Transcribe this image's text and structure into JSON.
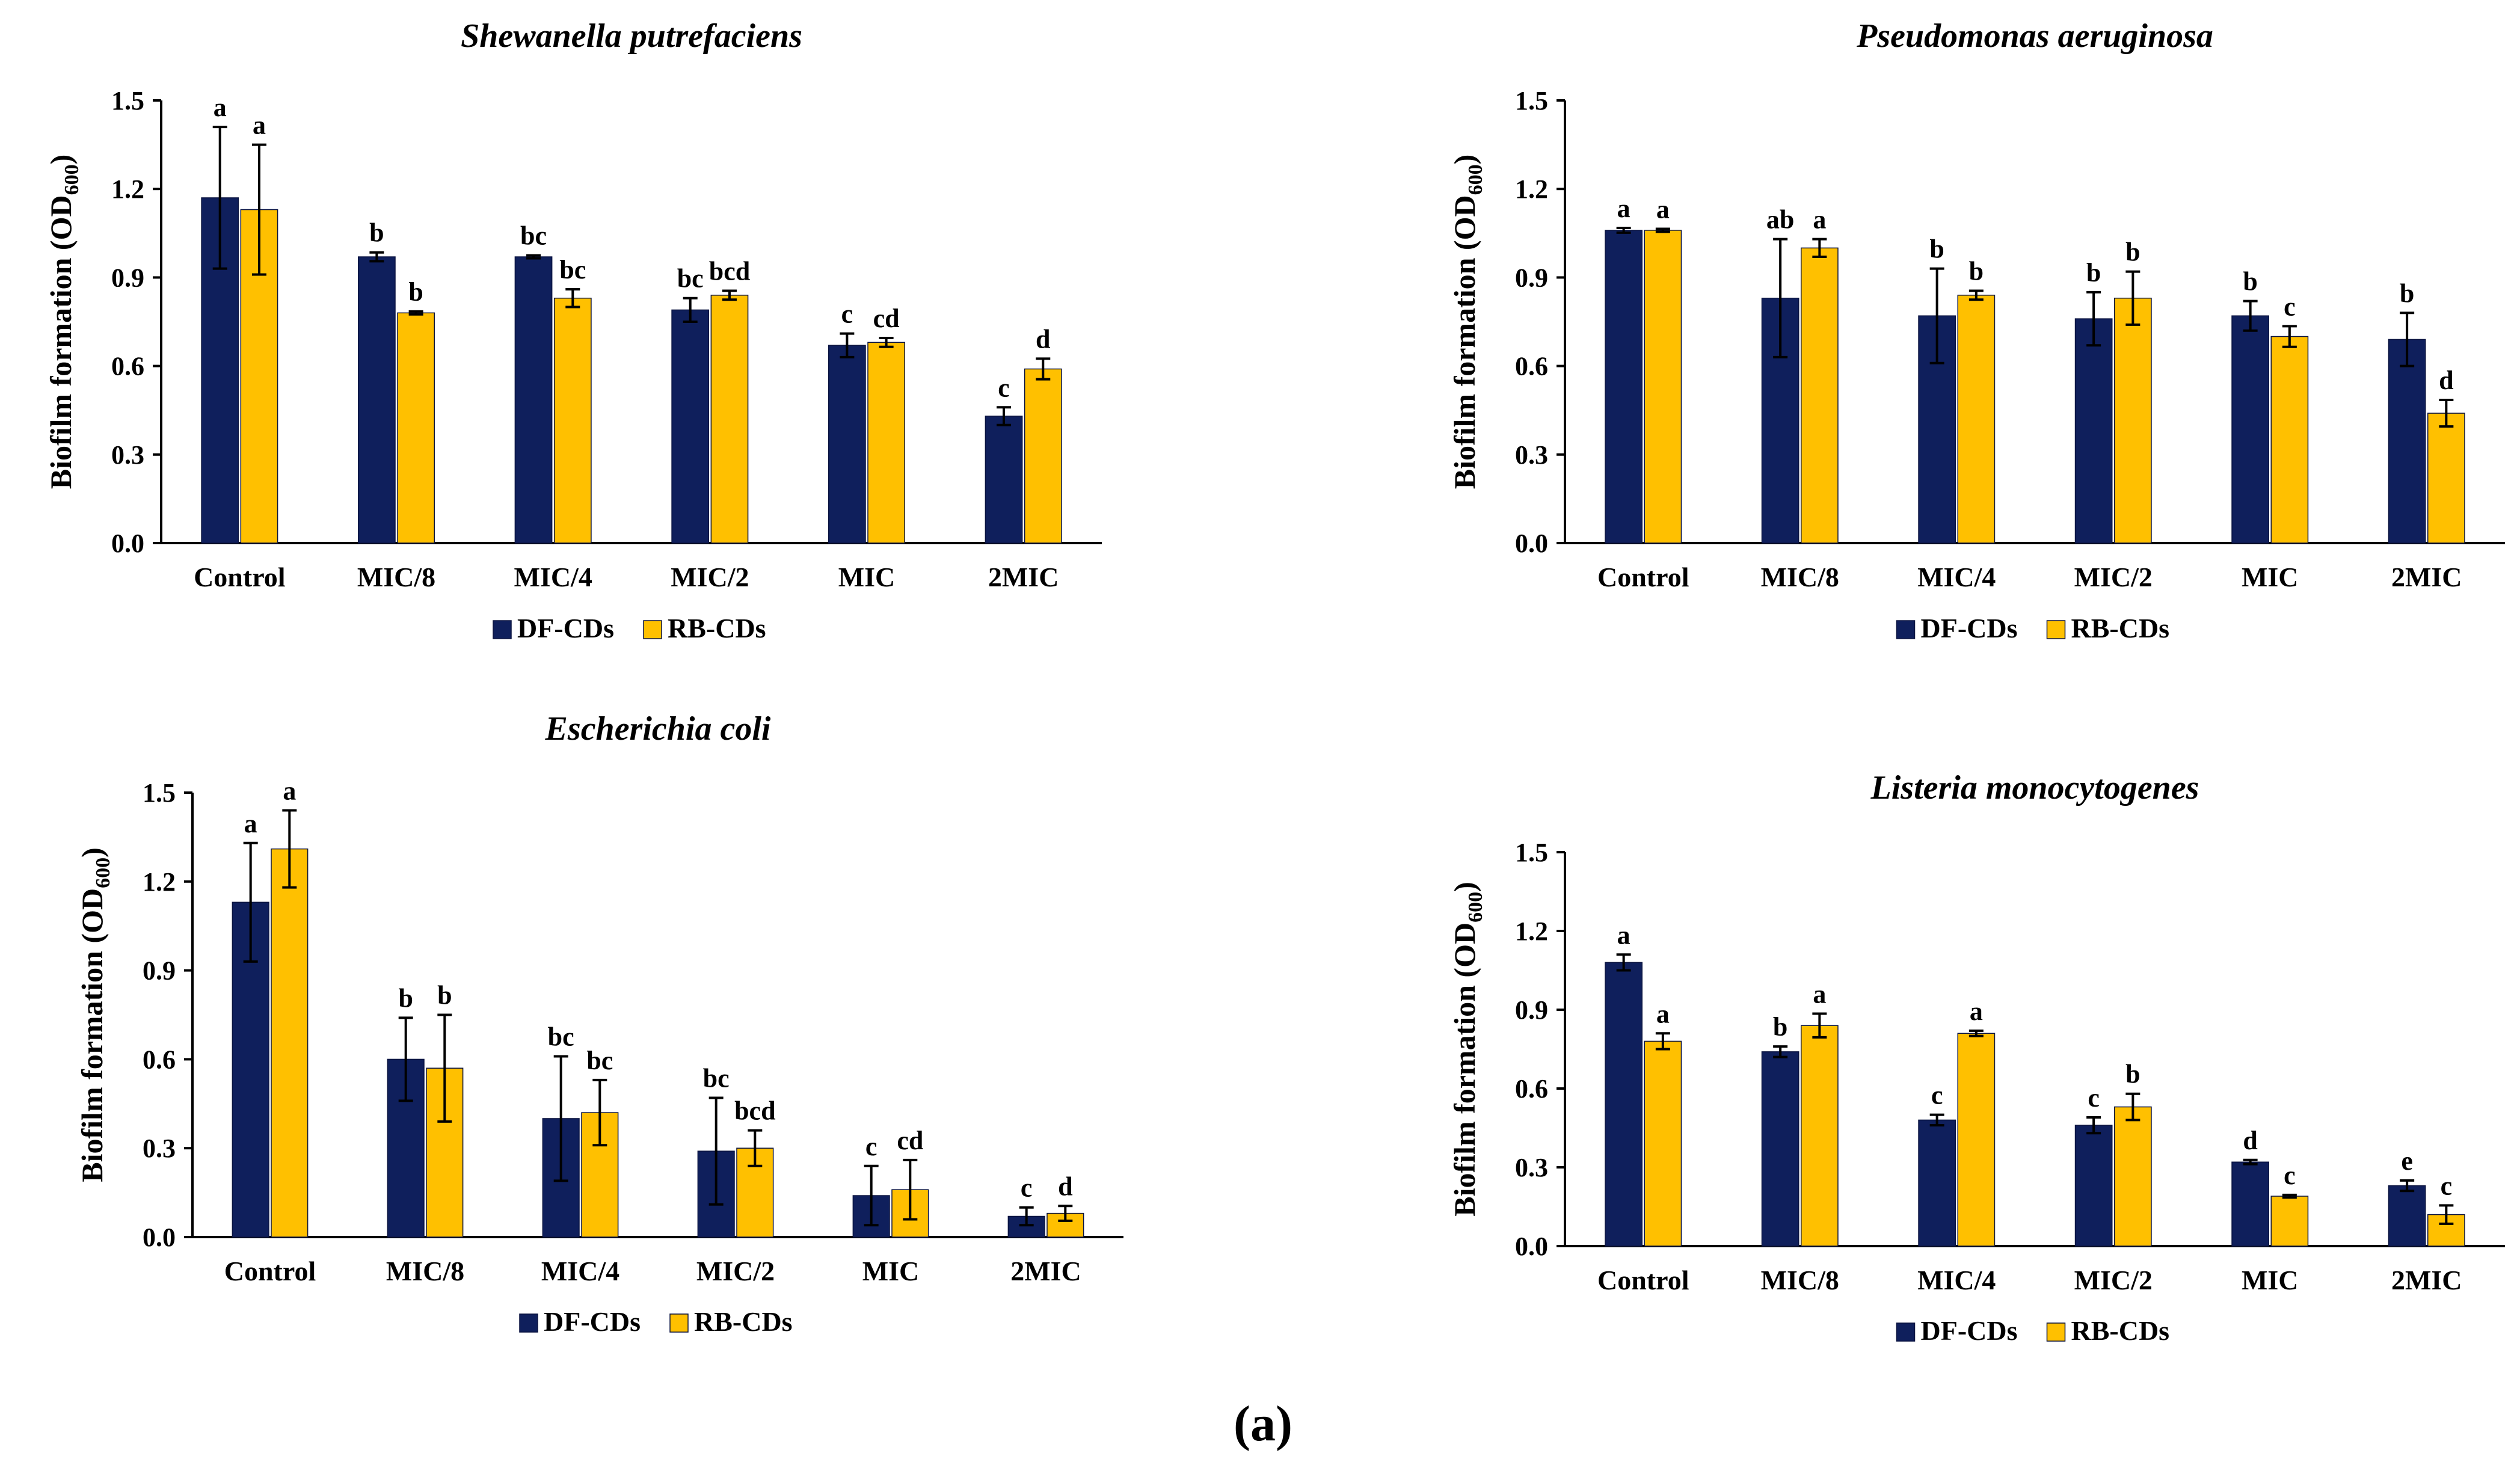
{
  "figure_caption": "(a)",
  "colors": {
    "DF-CDs": "#0f1f5c",
    "RB-CDs": "#ffc000",
    "axis": "#000000"
  },
  "chart_data": [
    {
      "type": "bar",
      "title": "Shewanella putrefaciens",
      "ylabel": "Biofilm formation (OD600)",
      "ylabel_main": "Biofilm formation (OD",
      "ylabel_sub": "600",
      "ylabel_close": ")",
      "ylim": [
        0,
        1.5
      ],
      "yticks": [
        "0.0",
        "0.3",
        "0.6",
        "0.9",
        "1.2",
        "1.5"
      ],
      "categories": [
        "Control",
        "MIC/8",
        "MIC/4",
        "MIC/2",
        "MIC",
        "2MIC"
      ],
      "legend": [
        "DF-CDs",
        "RB-CDs"
      ],
      "series": [
        {
          "name": "DF-CDs",
          "values": [
            1.17,
            0.97,
            0.97,
            0.79,
            0.67,
            0.43
          ],
          "errors": [
            0.24,
            0.015,
            0.005,
            0.04,
            0.04,
            0.03
          ],
          "labels": [
            "a",
            "b",
            "bc",
            "bc",
            "c",
            "c"
          ]
        },
        {
          "name": "RB-CDs",
          "values": [
            1.13,
            0.78,
            0.83,
            0.84,
            0.68,
            0.59
          ],
          "errors": [
            0.22,
            0.005,
            0.03,
            0.015,
            0.015,
            0.035
          ],
          "labels": [
            "a",
            "b",
            "bc",
            "bcd",
            "cd",
            "d"
          ]
        }
      ]
    },
    {
      "type": "bar",
      "title": "Pseudomonas aeruginosa",
      "ylabel": "Biofilm formation (OD600)",
      "ylabel_main": "Biofilm formation (OD",
      "ylabel_sub": "600",
      "ylabel_close": ")",
      "ylim": [
        0,
        1.5
      ],
      "yticks": [
        "0.0",
        "0.3",
        "0.6",
        "0.9",
        "1.2",
        "1.5"
      ],
      "categories": [
        "Control",
        "MIC/8",
        "MIC/4",
        "MIC/2",
        "MIC",
        "2MIC"
      ],
      "legend": [
        "DF-CDs",
        "RB-CDs"
      ],
      "series": [
        {
          "name": "DF-CDs",
          "values": [
            1.06,
            0.83,
            0.77,
            0.76,
            0.77,
            0.69
          ],
          "errors": [
            0.008,
            0.2,
            0.16,
            0.09,
            0.05,
            0.09
          ],
          "labels": [
            "a",
            "ab",
            "b",
            "b",
            "b",
            "b"
          ]
        },
        {
          "name": "RB-CDs",
          "values": [
            1.06,
            1.0,
            0.84,
            0.83,
            0.7,
            0.44
          ],
          "errors": [
            0.005,
            0.03,
            0.015,
            0.09,
            0.035,
            0.045
          ],
          "labels": [
            "a",
            "a",
            "b",
            "b",
            "c",
            "d"
          ]
        }
      ]
    },
    {
      "type": "bar",
      "title": "Escherichia coli",
      "ylabel": "Biofilm formation (OD600)",
      "ylabel_main": "Biofilm formation (OD",
      "ylabel_sub": "600",
      "ylabel_close": ")",
      "ylim": [
        0,
        1.5
      ],
      "yticks": [
        "0.0",
        "0.3",
        "0.6",
        "0.9",
        "1.2",
        "1.5"
      ],
      "categories": [
        "Control",
        "MIC/8",
        "MIC/4",
        "MIC/2",
        "MIC",
        "2MIC"
      ],
      "legend": [
        "DF-CDs",
        "RB-CDs"
      ],
      "series": [
        {
          "name": "DF-CDs",
          "values": [
            1.13,
            0.6,
            0.4,
            0.29,
            0.14,
            0.07
          ],
          "errors": [
            0.2,
            0.14,
            0.21,
            0.18,
            0.1,
            0.03
          ],
          "labels": [
            "a",
            "b",
            "bc",
            "bc",
            "c",
            "c"
          ]
        },
        {
          "name": "RB-CDs",
          "values": [
            1.31,
            0.57,
            0.42,
            0.3,
            0.16,
            0.08
          ],
          "errors": [
            0.13,
            0.18,
            0.11,
            0.06,
            0.1,
            0.025
          ],
          "labels": [
            "a",
            "b",
            "bc",
            "bcd",
            "cd",
            "d"
          ]
        }
      ]
    },
    {
      "type": "bar",
      "title": "Listeria monocytogenes",
      "ylabel": "Biofilm formation (OD600)",
      "ylabel_main": "Biofilm formation (OD",
      "ylabel_sub": "600",
      "ylabel_close": ")",
      "ylim": [
        0,
        1.5
      ],
      "yticks": [
        "0.0",
        "0.3",
        "0.6",
        "0.9",
        "1.2",
        "1.5"
      ],
      "categories": [
        "Control",
        "MIC/8",
        "MIC/4",
        "MIC/2",
        "MIC",
        "2MIC"
      ],
      "legend": [
        "DF-CDs",
        "RB-CDs"
      ],
      "series": [
        {
          "name": "DF-CDs",
          "values": [
            1.08,
            0.74,
            0.48,
            0.46,
            0.32,
            0.23
          ],
          "errors": [
            0.03,
            0.02,
            0.02,
            0.03,
            0.008,
            0.02
          ],
          "labels": [
            "a",
            "b",
            "c",
            "c",
            "d",
            "e"
          ]
        },
        {
          "name": "RB-CDs",
          "values": [
            0.78,
            0.84,
            0.81,
            0.53,
            0.19,
            0.12
          ],
          "errors": [
            0.03,
            0.045,
            0.01,
            0.05,
            0.005,
            0.035
          ],
          "labels": [
            "a",
            "a",
            "a",
            "b",
            "c",
            "c"
          ]
        }
      ]
    }
  ]
}
